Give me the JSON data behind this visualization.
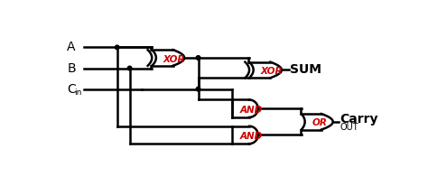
{
  "background_color": "#ffffff",
  "line_color": "#000000",
  "label_color": "#000000",
  "gate_label_color": "#cc0000",
  "figsize": [
    4.74,
    2.06
  ],
  "dpi": 100,
  "xlim": [
    0,
    474
  ],
  "ylim": [
    0,
    206
  ]
}
